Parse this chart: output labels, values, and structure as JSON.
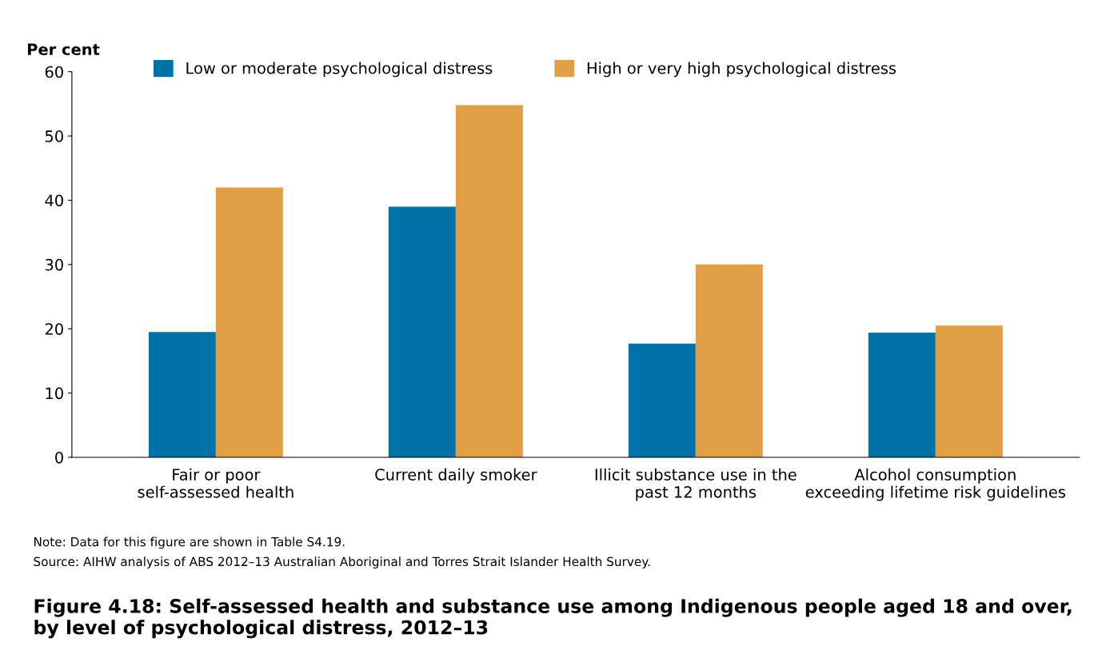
{
  "chart_data": {
    "type": "bar",
    "title": "Figure 4.18: Self-assessed health and substance use among Indigenous people aged 18 and over, by level of psychological distress, 2012–13",
    "ylabel": "Per cent",
    "categories": [
      "Fair or poor\nself-assessed health",
      "Current daily smoker",
      "Illicit substance use in the\npast 12 months",
      "Alcohol consumption\nexceeding lifetime risk guidelines"
    ],
    "series": [
      {
        "name": "Low or moderate psychological distress",
        "color": "#0072a6",
        "values": [
          19.5,
          39.0,
          17.7,
          19.4
        ]
      },
      {
        "name": "High or very high psychological distress",
        "color": "#e09e45",
        "values": [
          42.0,
          54.8,
          30.0,
          20.5
        ]
      }
    ],
    "ylim": [
      0,
      60
    ],
    "yticks": [
      0,
      10,
      20,
      30,
      40,
      50,
      60
    ],
    "grid": false,
    "legend": "top",
    "annotations": [
      "Note: Data for this figure are shown in Table S4.19.",
      "Source: AIHW analysis of ABS 2012–13 Australian Aboriginal and Torres Strait Islander Health Survey."
    ]
  }
}
